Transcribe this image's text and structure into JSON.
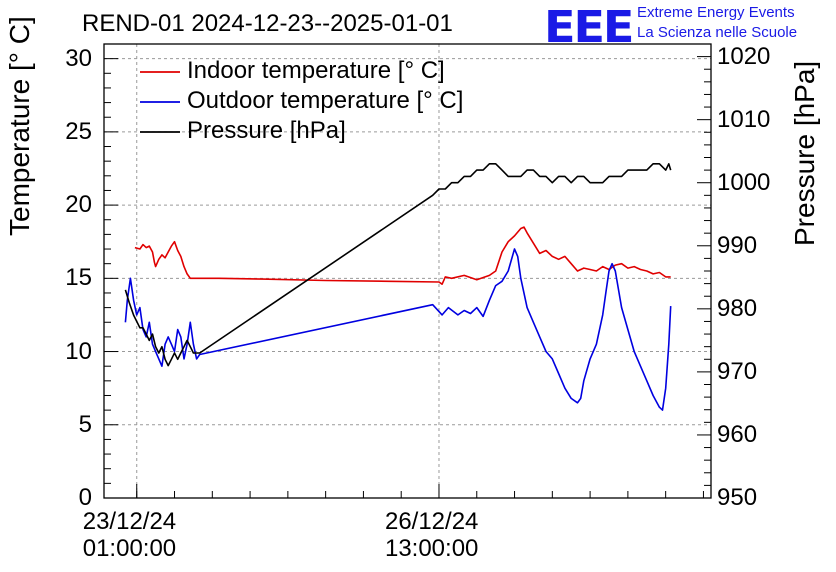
{
  "title": "REND-01 2024-12-23--2025-01-01",
  "logo": {
    "mark": "EEE",
    "line1": "Extreme Energy Events",
    "line2": "La Scienza nelle Scuole",
    "color": "#1a1ae6"
  },
  "chart_data": {
    "type": "line",
    "title": "REND-01 2024-12-23--2025-01-01",
    "ylabel": "Temperature [° C]",
    "y2label": "Pressure [hPa]",
    "xlabel": "",
    "ylim": [
      0,
      31
    ],
    "y2lim": [
      950,
      1022
    ],
    "xlim_hours": [
      -5.2,
      91.2
    ],
    "yticks": [
      "0",
      "5",
      "10",
      "15",
      "20",
      "25",
      "30"
    ],
    "y2ticks": [
      "950",
      "960",
      "970",
      "980",
      "990",
      "1000",
      "1010",
      "1020"
    ],
    "xticks": [
      {
        "date": "23/12/24",
        "time": "01:00:00",
        "hours": 0
      },
      {
        "date": "26/12/24",
        "time": "13:00:00",
        "hours": 48
      }
    ],
    "grid": true,
    "legend_position": "top-left",
    "series": [
      {
        "name": "Indoor temperature [° C]",
        "axis": "left",
        "color": "#e00000",
        "x": [
          -0.3,
          0.5,
          1.0,
          1.5,
          2.0,
          2.5,
          2.8,
          3.0,
          3.5,
          4.0,
          4.5,
          5.0,
          5.5,
          6.0,
          6.5,
          7.0,
          7.5,
          8.0,
          8.5,
          9.0,
          10.0,
          11.0,
          13.0,
          20,
          30,
          40,
          48.0,
          48.5,
          49.0,
          50,
          52,
          54,
          56,
          57,
          58,
          59,
          60,
          61,
          61.5,
          62,
          63,
          64,
          65,
          66,
          67,
          68,
          69,
          70,
          71,
          72,
          73,
          74,
          75,
          76,
          77,
          78,
          79,
          80,
          81,
          82,
          83,
          84,
          84.8
        ],
        "y": [
          17.1,
          17.0,
          17.3,
          17.1,
          17.2,
          16.8,
          16.1,
          15.8,
          16.3,
          16.6,
          16.4,
          16.8,
          17.2,
          17.5,
          16.9,
          16.5,
          15.8,
          15.3,
          15.0,
          15.0,
          15.0,
          15.0,
          15.0,
          14.95,
          14.85,
          14.8,
          14.75,
          14.6,
          15.1,
          15.0,
          15.2,
          14.9,
          15.2,
          15.5,
          16.8,
          17.5,
          17.9,
          18.4,
          18.5,
          18.1,
          17.4,
          16.7,
          16.9,
          16.5,
          16.3,
          16.5,
          16.0,
          15.5,
          15.7,
          15.6,
          15.5,
          15.8,
          15.6,
          15.9,
          16.0,
          15.7,
          15.8,
          15.6,
          15.5,
          15.3,
          15.4,
          15.1,
          15.1
        ]
      },
      {
        "name": "Outdoor temperature [° C]",
        "axis": "left",
        "color": "#0000e0",
        "x": [
          -1.8,
          -1.5,
          -1.0,
          -0.5,
          0.0,
          0.5,
          1.0,
          1.5,
          2.0,
          2.5,
          3.0,
          3.5,
          4.0,
          4.5,
          5.0,
          5.5,
          6.0,
          6.5,
          7.0,
          7.5,
          8.0,
          8.5,
          9.0,
          9.5,
          10.0,
          47.0,
          48.5,
          49.5,
          51,
          52,
          53,
          54,
          55,
          56,
          57,
          58,
          59,
          60,
          60.5,
          61,
          62,
          63,
          64,
          65,
          66,
          67,
          68,
          69,
          70,
          70.5,
          71,
          72,
          73,
          74,
          74.5,
          75,
          75.5,
          76,
          77,
          78,
          79,
          80,
          81,
          82,
          83,
          83.5,
          84,
          84.5,
          84.8
        ],
        "y": [
          12.0,
          13.5,
          15.0,
          13.5,
          12.5,
          13.0,
          11.5,
          11.0,
          12.0,
          10.5,
          10.0,
          9.5,
          9.0,
          10.5,
          11.0,
          10.5,
          10.0,
          11.5,
          11.0,
          9.5,
          10.5,
          12.0,
          10.5,
          9.5,
          9.8,
          13.2,
          12.5,
          13.0,
          12.5,
          12.8,
          12.6,
          13.0,
          12.4,
          13.5,
          14.5,
          14.8,
          15.5,
          17.0,
          16.5,
          15.0,
          13.0,
          12.0,
          11.0,
          10.0,
          9.5,
          8.5,
          7.5,
          6.8,
          6.5,
          6.8,
          8.0,
          9.5,
          10.5,
          12.5,
          14.0,
          15.5,
          16.0,
          15.5,
          13.0,
          11.5,
          10.0,
          9.0,
          8.0,
          7.0,
          6.2,
          6.0,
          7.5,
          10.5,
          13.1
        ]
      },
      {
        "name": "Pressure [hPa]",
        "axis": "right",
        "color": "#000000",
        "x": [
          -1.8,
          -1.2,
          -0.5,
          0.0,
          0.5,
          1.0,
          1.5,
          2.0,
          2.5,
          3.0,
          3.5,
          4.0,
          4.5,
          5.0,
          5.5,
          6.0,
          6.5,
          7.0,
          7.5,
          8.0,
          8.5,
          9.0,
          10.0,
          47.0,
          48.0,
          49.0,
          50,
          51,
          52,
          53,
          54,
          55,
          56,
          57,
          58,
          59,
          60,
          61,
          62,
          63,
          64,
          65,
          66,
          67,
          68,
          69,
          70,
          71,
          72,
          73,
          74,
          75,
          76,
          77,
          78,
          79,
          80,
          81,
          82,
          83,
          84,
          84.5,
          84.8
        ],
        "y": [
          983,
          981,
          979,
          978,
          977,
          977,
          976,
          975,
          976,
          974,
          973,
          974,
          972,
          971,
          972,
          973,
          972,
          973,
          974,
          975,
          974,
          973,
          973,
          998,
          999,
          999,
          1000,
          1000,
          1001,
          1001,
          1002,
          1002,
          1003,
          1003,
          1002,
          1001,
          1001,
          1001,
          1002,
          1002,
          1001,
          1001,
          1000,
          1001,
          1001,
          1000,
          1001,
          1001,
          1000,
          1000,
          1000,
          1001,
          1001,
          1001,
          1002,
          1002,
          1002,
          1002,
          1003,
          1003,
          1002,
          1003,
          1002
        ]
      }
    ]
  }
}
